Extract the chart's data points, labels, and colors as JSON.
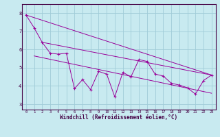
{
  "xlabel": "Windchill (Refroidissement éolien,°C)",
  "bg_color": "#c8eaf0",
  "grid_color": "#a0ccd8",
  "line_color": "#990099",
  "spine_color": "#440044",
  "x_ticks": [
    0,
    1,
    2,
    3,
    4,
    5,
    6,
    7,
    8,
    9,
    10,
    11,
    12,
    13,
    14,
    15,
    16,
    17,
    18,
    19,
    20,
    21,
    22,
    23
  ],
  "y_ticks": [
    3,
    4,
    5,
    6,
    7,
    8
  ],
  "xlim": [
    -0.5,
    23.5
  ],
  "ylim": [
    2.7,
    8.5
  ],
  "zigzag_y": [
    7.9,
    7.2,
    6.4,
    5.8,
    5.75,
    5.8,
    3.85,
    4.35,
    3.8,
    4.8,
    4.65,
    3.4,
    4.75,
    4.5,
    5.45,
    5.35,
    4.65,
    4.55,
    4.15,
    4.05,
    3.9,
    3.55,
    4.3,
    4.6
  ],
  "line1_start_x": 0,
  "line1_start_y": 7.9,
  "line1_end_x": 23,
  "line1_end_y": 4.6,
  "line2_start_x": 1,
  "line2_start_y": 5.65,
  "line2_end_x": 23,
  "line2_end_y": 3.6,
  "line3_start_x": 2,
  "line3_start_y": 6.4,
  "line3_end_x": 23,
  "line3_end_y": 4.6
}
